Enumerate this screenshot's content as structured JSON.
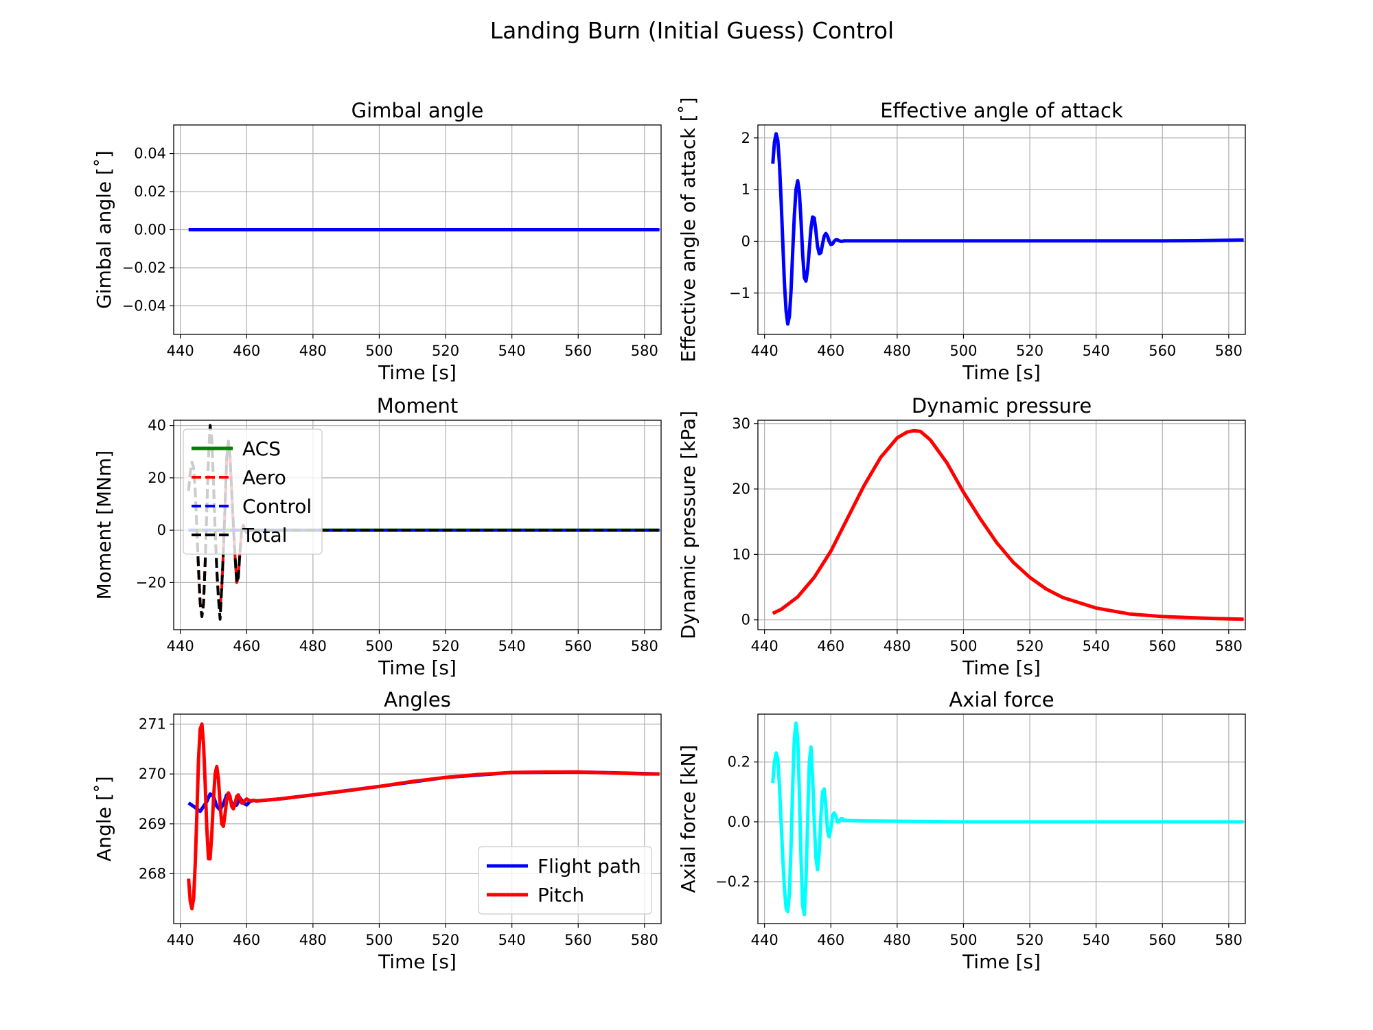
{
  "figure_title": "Landing Burn (Initial Guess) Control",
  "chart_data": [
    {
      "type": "line",
      "title": "Gimbal angle",
      "xlabel": "Time [s]",
      "ylabel": "Gimbal angle [˚]",
      "xlim": [
        438,
        585
      ],
      "ylim": [
        -0.055,
        0.055
      ],
      "xticks": [
        440,
        460,
        480,
        500,
        520,
        540,
        560,
        580
      ],
      "yticks": [
        -0.04,
        -0.02,
        0.0,
        0.02,
        0.04
      ],
      "ytick_labels": [
        "−0.04",
        "−0.02",
        "0.00",
        "0.02",
        "0.04"
      ],
      "grid": true,
      "series": [
        {
          "color": "#0000ff",
          "dash": "solid",
          "x": [
            442.5,
            584.5
          ],
          "y": [
            0.0,
            0.0
          ]
        }
      ]
    },
    {
      "type": "line",
      "title": "Effective angle of attack",
      "xlabel": "Time [s]",
      "ylabel": "Effective angle of attack [˚]",
      "xlim": [
        438,
        585
      ],
      "ylim": [
        -1.8,
        2.25
      ],
      "xticks": [
        440,
        460,
        480,
        500,
        520,
        540,
        560,
        580
      ],
      "yticks": [
        -1,
        0,
        1,
        2
      ],
      "ytick_labels": [
        "−1",
        "0",
        "1",
        "2"
      ],
      "grid": true,
      "series": [
        {
          "color": "#0000ff",
          "dash": "solid",
          "x": [
            442.5,
            443.0,
            443.5,
            444.0,
            444.5,
            445.0,
            445.5,
            446.0,
            446.5,
            447.0,
            447.5,
            448.0,
            448.5,
            449.0,
            449.5,
            450.0,
            450.5,
            451.0,
            451.5,
            452.0,
            452.5,
            453.0,
            453.5,
            454.0,
            454.5,
            455.0,
            455.5,
            456.0,
            456.5,
            457.0,
            457.5,
            458.0,
            458.5,
            459.0,
            459.5,
            460.0,
            460.5,
            461.0,
            461.5,
            462.0,
            462.5,
            463.0,
            463.5,
            464.0,
            465.0,
            470,
            480,
            500,
            520,
            540,
            560,
            570,
            580,
            584.5
          ],
          "y": [
            1.5,
            1.92,
            2.08,
            1.95,
            1.5,
            0.8,
            0.0,
            -0.8,
            -1.35,
            -1.6,
            -1.45,
            -0.95,
            -0.2,
            0.5,
            1.0,
            1.17,
            0.95,
            0.4,
            -0.25,
            -0.7,
            -0.77,
            -0.55,
            -0.15,
            0.25,
            0.47,
            0.45,
            0.2,
            -0.1,
            -0.24,
            -0.22,
            -0.05,
            0.1,
            0.15,
            0.1,
            0.0,
            -0.06,
            -0.05,
            0.0,
            0.03,
            0.03,
            0.01,
            0.0,
            0.0,
            0.01,
            0.01,
            0.01,
            0.01,
            0.01,
            0.01,
            0.01,
            0.01,
            0.012,
            0.02,
            0.025
          ]
        }
      ]
    },
    {
      "type": "line",
      "title": "Moment",
      "xlabel": "Time [s]",
      "ylabel": "Moment [MNm]",
      "xlim": [
        438,
        585
      ],
      "ylim": [
        -38,
        42
      ],
      "xticks": [
        440,
        460,
        480,
        500,
        520,
        540,
        560,
        580
      ],
      "yticks": [
        -20,
        0,
        20,
        40
      ],
      "ytick_labels": [
        "−20",
        "0",
        "20",
        "40"
      ],
      "grid": true,
      "legend": {
        "position": "upper-left",
        "entries": [
          "ACS",
          "Aero",
          "Control",
          "Total"
        ]
      },
      "series": [
        {
          "name": "ACS",
          "color": "#008000",
          "dash": "solid",
          "x": [
            442.5,
            584.5
          ],
          "y": [
            0,
            0
          ]
        },
        {
          "name": "Aero",
          "color": "#ff0000",
          "dash": "dashed",
          "x": [
            442.5,
            443.0,
            443.5,
            444.0,
            444.5,
            445.0,
            445.5,
            446.0,
            446.5,
            447.0,
            447.5,
            448.0,
            448.5,
            449.0,
            449.5,
            450.0,
            450.5,
            451.0,
            451.5,
            452.0,
            452.5,
            453.0,
            453.5,
            454.0,
            454.5,
            455.0,
            455.5,
            456.0,
            456.5,
            457.0,
            457.5,
            458.0,
            458.5,
            459.0,
            459.5,
            460.0,
            460.5,
            461.0,
            461.5,
            462.0,
            462.5,
            463.0,
            463.5,
            464.0,
            465.0,
            470,
            480,
            500,
            520,
            540,
            560,
            584.5
          ],
          "y": [
            15,
            22,
            26,
            24,
            15,
            0,
            -15,
            -28,
            -33,
            -28,
            -12,
            8,
            28,
            40,
            35,
            18,
            0,
            -15,
            -26,
            -30,
            -22,
            -8,
            10,
            28,
            34,
            28,
            15,
            2,
            -10,
            -20,
            -18,
            -8,
            0,
            2,
            0,
            -1,
            0,
            0,
            0,
            0,
            0,
            0,
            0,
            0,
            0,
            0,
            0,
            0,
            0,
            0,
            0,
            0
          ]
        },
        {
          "name": "Control",
          "color": "#0000ff",
          "dash": "dashed",
          "x": [
            442.5,
            584.5
          ],
          "y": [
            0,
            0
          ]
        },
        {
          "name": "Total",
          "color": "#000000",
          "dash": "dashed",
          "x": [
            442.5,
            443.0,
            443.5,
            444.0,
            444.5,
            445.0,
            445.5,
            446.0,
            446.5,
            447.0,
            447.5,
            448.0,
            448.5,
            449.0,
            449.5,
            450.0,
            450.5,
            451.0,
            451.5,
            452.0,
            452.5,
            453.0,
            453.5,
            454.0,
            454.5,
            455.0,
            455.5,
            456.0,
            456.5,
            457.0,
            457.5,
            458.0,
            458.5,
            459.0,
            459.5,
            460.0,
            460.5,
            461.0,
            461.5,
            462.0,
            462.5,
            463.0,
            463.5,
            464.0,
            465.0,
            470,
            480,
            500,
            520,
            540,
            560,
            584.5
          ],
          "y": [
            15,
            22,
            26,
            24,
            15,
            0,
            -15,
            -28,
            -33,
            -28,
            -12,
            8,
            28,
            40,
            35,
            18,
            0,
            -15,
            -26,
            -34,
            -22,
            -8,
            10,
            28,
            34,
            28,
            15,
            2,
            -10,
            -20,
            -18,
            -8,
            0,
            2,
            0,
            -1,
            0,
            0,
            0,
            0,
            0,
            0,
            0,
            0,
            0,
            0,
            0,
            0,
            0,
            0,
            0,
            0
          ]
        }
      ]
    },
    {
      "type": "line",
      "title": "Dynamic pressure",
      "xlabel": "Time [s]",
      "ylabel": "Dynamic pressure [kPa]",
      "xlim": [
        438,
        585
      ],
      "ylim": [
        -1.5,
        30.5
      ],
      "xticks": [
        440,
        460,
        480,
        500,
        520,
        540,
        560,
        580
      ],
      "yticks": [
        0,
        10,
        20,
        30
      ],
      "ytick_labels": [
        "0",
        "10",
        "20",
        "30"
      ],
      "grid": true,
      "series": [
        {
          "color": "#ff0000",
          "dash": "solid",
          "x": [
            442.5,
            445,
            450,
            455,
            460,
            465,
            470,
            475,
            480,
            483,
            485,
            487,
            490,
            495,
            500,
            505,
            510,
            515,
            520,
            525,
            530,
            540,
            550,
            560,
            570,
            580,
            584.5
          ],
          "y": [
            1.0,
            1.6,
            3.5,
            6.5,
            10.5,
            15.5,
            20.5,
            24.8,
            27.8,
            28.7,
            28.9,
            28.8,
            27.5,
            24.0,
            19.5,
            15.5,
            11.8,
            8.8,
            6.5,
            4.7,
            3.4,
            1.8,
            0.9,
            0.5,
            0.3,
            0.15,
            0.1
          ]
        }
      ]
    },
    {
      "type": "line",
      "title": "Angles",
      "xlabel": "Time [s]",
      "ylabel": "Angle [˚]",
      "xlim": [
        438,
        585
      ],
      "ylim": [
        267.0,
        271.2
      ],
      "xticks": [
        440,
        460,
        480,
        500,
        520,
        540,
        560,
        580
      ],
      "yticks": [
        268,
        269,
        270,
        271
      ],
      "ytick_labels": [
        "268",
        "269",
        "270",
        "271"
      ],
      "grid": true,
      "legend": {
        "position": "lower-right",
        "entries": [
          "Flight path",
          "Pitch"
        ]
      },
      "series": [
        {
          "name": "Flight path",
          "color": "#0000ff",
          "dash": "solid",
          "x": [
            442.5,
            444,
            446,
            448,
            449,
            450,
            451,
            452,
            453,
            454,
            455,
            456,
            457,
            458,
            459,
            460,
            461,
            462,
            463,
            465,
            470,
            480,
            500,
            520,
            540,
            560,
            584.5
          ],
          "y": [
            269.42,
            269.35,
            269.25,
            269.45,
            269.6,
            269.55,
            269.35,
            269.28,
            269.4,
            269.58,
            269.5,
            269.35,
            269.38,
            269.52,
            269.42,
            269.38,
            269.45,
            269.47,
            269.46,
            269.47,
            269.5,
            269.58,
            269.75,
            269.93,
            270.03,
            270.04,
            270.0
          ]
        },
        {
          "name": "Pitch",
          "color": "#ff0000",
          "dash": "solid",
          "x": [
            442.5,
            443,
            443.5,
            444,
            444.5,
            445,
            445.5,
            446,
            446.5,
            447,
            447.5,
            448,
            448.5,
            449,
            449.5,
            450,
            450.5,
            451,
            451.5,
            452,
            452.5,
            453,
            453.5,
            454,
            454.5,
            455,
            455.5,
            456,
            456.5,
            457,
            457.5,
            458,
            458.5,
            459,
            459.5,
            460,
            460.5,
            461,
            462,
            463,
            465,
            470,
            480,
            490,
            500,
            510,
            520,
            530,
            540,
            550,
            560,
            570,
            580,
            584.5
          ],
          "y": [
            267.9,
            267.45,
            267.3,
            267.5,
            268.2,
            269.2,
            270.3,
            270.9,
            271.0,
            270.6,
            269.8,
            268.9,
            268.3,
            268.3,
            268.8,
            269.5,
            270.0,
            270.15,
            269.9,
            269.4,
            269.0,
            268.95,
            269.2,
            269.5,
            269.62,
            269.55,
            269.35,
            269.3,
            269.4,
            269.55,
            269.58,
            269.5,
            269.42,
            269.42,
            269.47,
            269.5,
            269.48,
            269.46,
            269.47,
            269.46,
            269.47,
            269.5,
            269.58,
            269.66,
            269.75,
            269.85,
            269.93,
            269.99,
            270.03,
            270.04,
            270.04,
            270.02,
            270.0,
            270.0
          ]
        }
      ]
    },
    {
      "type": "line",
      "title": "Axial force",
      "xlabel": "Time [s]",
      "ylabel": "Axial force [kN]",
      "xlim": [
        438,
        585
      ],
      "ylim": [
        -0.34,
        0.36
      ],
      "xticks": [
        440,
        460,
        480,
        500,
        520,
        540,
        560,
        580
      ],
      "yticks": [
        -0.2,
        0.0,
        0.2
      ],
      "ytick_labels": [
        "−0.2",
        "0.0",
        "0.2"
      ],
      "grid": true,
      "series": [
        {
          "color": "#00ffff",
          "dash": "solid",
          "x": [
            442.5,
            443,
            443.5,
            444,
            444.5,
            445,
            445.5,
            446,
            446.5,
            447,
            447.5,
            448,
            448.5,
            449,
            449.5,
            450,
            450.5,
            451,
            451.5,
            452,
            452.5,
            453,
            453.5,
            454,
            454.5,
            455,
            455.5,
            456,
            456.5,
            457,
            457.5,
            458,
            458.5,
            459,
            459.5,
            460,
            460.5,
            461,
            461.5,
            462,
            462.5,
            463,
            463.5,
            464,
            465,
            466,
            470,
            480,
            500,
            520,
            540,
            560,
            584.5
          ],
          "y": [
            0.13,
            0.2,
            0.23,
            0.21,
            0.12,
            0.0,
            -0.12,
            -0.22,
            -0.29,
            -0.3,
            -0.24,
            -0.08,
            0.12,
            0.28,
            0.33,
            0.28,
            0.1,
            -0.12,
            -0.28,
            -0.31,
            -0.2,
            0.0,
            0.2,
            0.25,
            0.15,
            0.0,
            -0.12,
            -0.16,
            -0.1,
            0.02,
            0.1,
            0.11,
            0.05,
            -0.03,
            -0.05,
            -0.02,
            0.02,
            0.03,
            0.02,
            0.0,
            0.0,
            0.01,
            0.01,
            0.005,
            0.005,
            0.004,
            0.003,
            0.002,
            0.0,
            0.0,
            0.0,
            0.0,
            0.0
          ]
        }
      ]
    }
  ]
}
